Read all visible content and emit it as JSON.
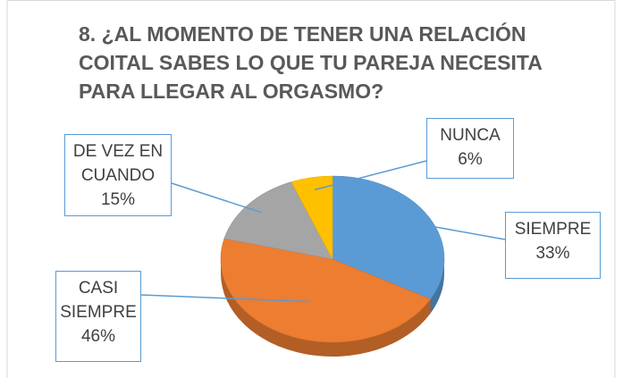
{
  "chart_data": {
    "type": "pie",
    "title": "8. ¿AL MOMENTO DE TENER UNA RELACIÓN COITAL SABES LO QUE TU PAREJA NECESITA PARA LLEGAR AL ORGASMO?",
    "categories": [
      "SIEMPRE",
      "CASI SIEMPRE",
      "DE VEZ EN CUANDO",
      "NUNCA"
    ],
    "values": [
      33,
      46,
      15,
      6
    ],
    "value_labels": [
      "33%",
      "46%",
      "15%",
      "6%"
    ],
    "colors": [
      "#5b9bd5",
      "#ed7d31",
      "#a5a5a5",
      "#ffc000"
    ]
  }
}
